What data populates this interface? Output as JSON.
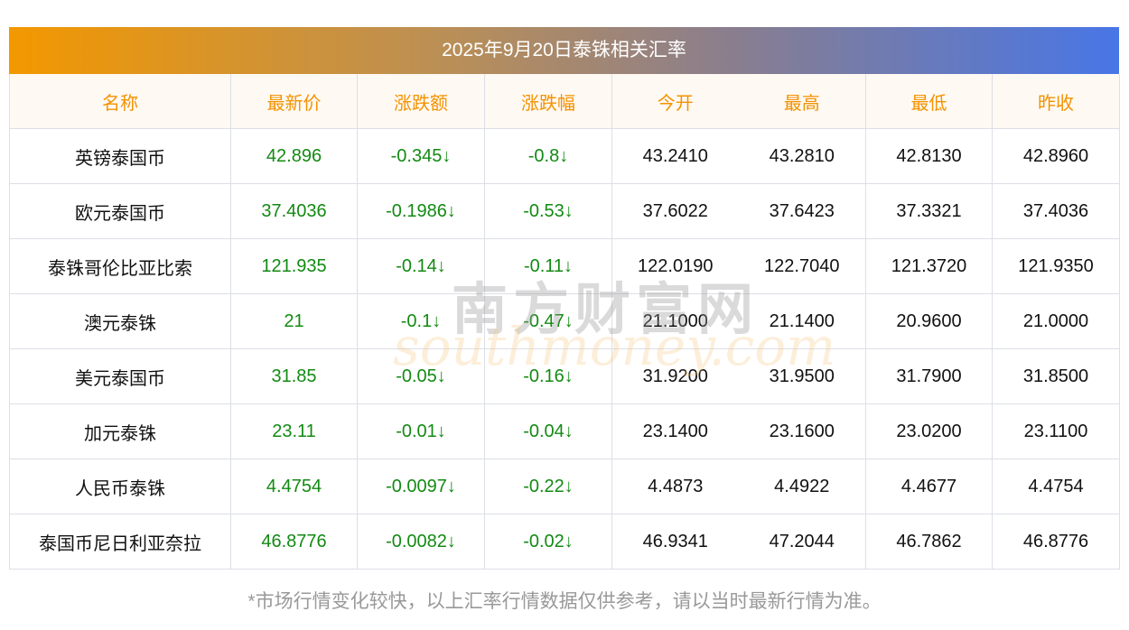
{
  "title": "2025年9月20日泰铢相关汇率",
  "headers": [
    "名称",
    "最新价",
    "涨跌额",
    "涨跌幅",
    "今开",
    "最高",
    "最低",
    "昨收"
  ],
  "rows": [
    [
      "英镑泰国币",
      "42.896",
      "-0.345↓",
      "-0.8↓",
      "43.2410",
      "43.2810",
      "42.8130",
      "42.8960"
    ],
    [
      "欧元泰国币",
      "37.4036",
      "-0.1986↓",
      "-0.53↓",
      "37.6022",
      "37.6423",
      "37.3321",
      "37.4036"
    ],
    [
      "泰铢哥伦比亚比索",
      "121.935",
      "-0.14↓",
      "-0.11↓",
      "122.0190",
      "122.7040",
      "121.3720",
      "121.9350"
    ],
    [
      "澳元泰铢",
      "21",
      "-0.1↓",
      "-0.47↓",
      "21.1000",
      "21.1400",
      "20.9600",
      "21.0000"
    ],
    [
      "美元泰国币",
      "31.85",
      "-0.05↓",
      "-0.16↓",
      "31.9200",
      "31.9500",
      "31.7900",
      "31.8500"
    ],
    [
      "加元泰铢",
      "23.11",
      "-0.01↓",
      "-0.04↓",
      "23.1400",
      "23.1600",
      "23.0200",
      "23.1100"
    ],
    [
      "人民币泰铢",
      "4.4754",
      "-0.0097↓",
      "-0.22↓",
      "4.4873",
      "4.4922",
      "4.4677",
      "4.4754"
    ],
    [
      "泰国币尼日利亚奈拉",
      "46.8776",
      "-0.0082↓",
      "-0.02↓",
      "46.9341",
      "47.2044",
      "46.7862",
      "46.8776"
    ]
  ],
  "watermark": {
    "cn": "南方财富网",
    "en": "southmoney.com"
  },
  "note": "*市场行情变化较快，以上汇率行情数据仅供参考，请以当时最新行情为准。"
}
